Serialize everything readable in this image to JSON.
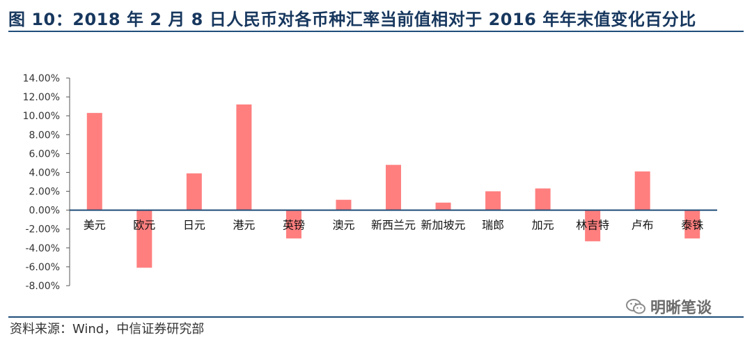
{
  "title": "图 10：2018 年 2 月 8 日人民币对各币种汇率当前值相对于 2016 年年末值变化百分比",
  "source": "资料来源：Wind，中信证券研究部",
  "watermark": "明晰笔谈",
  "colors": {
    "bar": "#ff7f7f",
    "axis": "#1f4e79",
    "title": "#17375e"
  },
  "chart_data": {
    "type": "bar",
    "categories": [
      "美元",
      "欧元",
      "日元",
      "港元",
      "英镑",
      "澳元",
      "新西兰元",
      "新加坡元",
      "瑞郎",
      "加元",
      "林吉特",
      "卢布",
      "泰铢"
    ],
    "values": [
      10.3,
      -6.1,
      3.9,
      11.2,
      -3.0,
      1.1,
      4.8,
      0.8,
      2.0,
      2.3,
      -3.3,
      4.1,
      -3.0
    ],
    "ylim": [
      -8,
      14
    ],
    "yticks": [
      "-8.00%",
      "-6.00%",
      "-4.00%",
      "-2.00%",
      "0.00%",
      "2.00%",
      "4.00%",
      "6.00%",
      "8.00%",
      "10.00%",
      "12.00%",
      "14.00%"
    ],
    "xlabel": "",
    "ylabel": "",
    "grid": false,
    "legend": "none"
  }
}
